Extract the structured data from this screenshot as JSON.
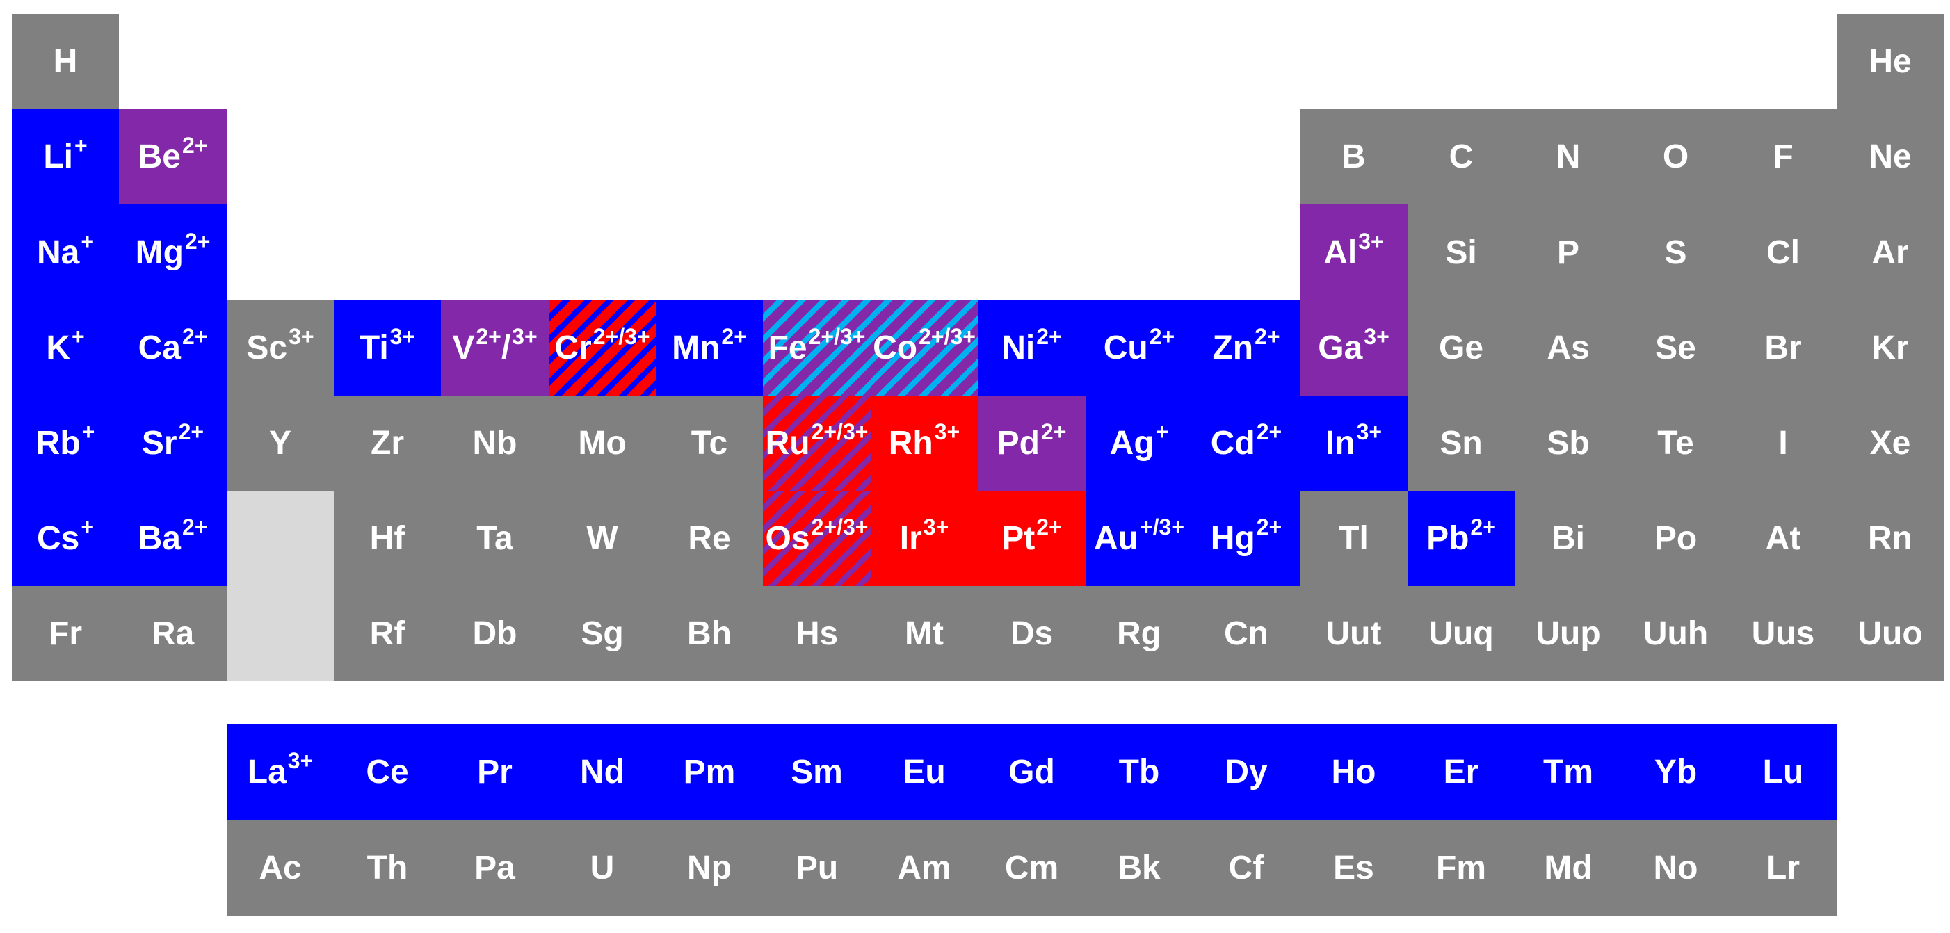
{
  "colors": {
    "gray": "#808080",
    "blue": "#0000ff",
    "purple": "#8228a9",
    "red": "#ff0000",
    "cyan": "#00b0f0",
    "light_gray": "#d9d9d9",
    "text": "#ffffff"
  },
  "main_table": [
    {
      "symbol": "H",
      "charge": "",
      "row": 1,
      "col": 1,
      "fill": "gray"
    },
    {
      "symbol": "He",
      "charge": "",
      "row": 1,
      "col": 18,
      "fill": "gray"
    },
    {
      "symbol": "Li",
      "charge": "+",
      "row": 2,
      "col": 1,
      "fill": "blue"
    },
    {
      "symbol": "Be",
      "charge": "2+",
      "row": 2,
      "col": 2,
      "fill": "purple"
    },
    {
      "symbol": "B",
      "charge": "",
      "row": 2,
      "col": 13,
      "fill": "gray"
    },
    {
      "symbol": "C",
      "charge": "",
      "row": 2,
      "col": 14,
      "fill": "gray"
    },
    {
      "symbol": "N",
      "charge": "",
      "row": 2,
      "col": 15,
      "fill": "gray"
    },
    {
      "symbol": "O",
      "charge": "",
      "row": 2,
      "col": 16,
      "fill": "gray"
    },
    {
      "symbol": "F",
      "charge": "",
      "row": 2,
      "col": 17,
      "fill": "gray"
    },
    {
      "symbol": "Ne",
      "charge": "",
      "row": 2,
      "col": 18,
      "fill": "gray"
    },
    {
      "symbol": "Na",
      "charge": "+",
      "row": 3,
      "col": 1,
      "fill": "blue"
    },
    {
      "symbol": "Mg",
      "charge": "2+",
      "row": 3,
      "col": 2,
      "fill": "blue"
    },
    {
      "symbol": "Al",
      "charge": "3+",
      "row": 3,
      "col": 13,
      "fill": "purple"
    },
    {
      "symbol": "Si",
      "charge": "",
      "row": 3,
      "col": 14,
      "fill": "gray"
    },
    {
      "symbol": "P",
      "charge": "",
      "row": 3,
      "col": 15,
      "fill": "gray"
    },
    {
      "symbol": "S",
      "charge": "",
      "row": 3,
      "col": 16,
      "fill": "gray"
    },
    {
      "symbol": "Cl",
      "charge": "",
      "row": 3,
      "col": 17,
      "fill": "gray"
    },
    {
      "symbol": "Ar",
      "charge": "",
      "row": 3,
      "col": 18,
      "fill": "gray"
    },
    {
      "symbol": "K",
      "charge": "+",
      "row": 4,
      "col": 1,
      "fill": "blue"
    },
    {
      "symbol": "Ca",
      "charge": "2+",
      "row": 4,
      "col": 2,
      "fill": "blue"
    },
    {
      "symbol": "Sc",
      "charge": "3+",
      "row": 4,
      "col": 3,
      "fill": "gray"
    },
    {
      "symbol": "Ti",
      "charge": "3+",
      "row": 4,
      "col": 4,
      "fill": "blue"
    },
    {
      "symbol": "V",
      "charge": "2+",
      "charge2": "3+",
      "row": 4,
      "col": 5,
      "fill": "purple"
    },
    {
      "symbol": "Cr",
      "charge": "2+/3+",
      "row": 4,
      "col": 6,
      "fill": "stripe-red-blue"
    },
    {
      "symbol": "Mn",
      "charge": "2+",
      "row": 4,
      "col": 7,
      "fill": "blue"
    },
    {
      "symbol": "Fe",
      "charge": "2+/3+",
      "row": 4,
      "col": 8,
      "fill": "stripe-purple-cyan"
    },
    {
      "symbol": "Co",
      "charge": "2+/3+",
      "row": 4,
      "col": 9,
      "fill": "stripe-purple-cyan"
    },
    {
      "symbol": "Ni",
      "charge": "2+",
      "row": 4,
      "col": 10,
      "fill": "blue"
    },
    {
      "symbol": "Cu",
      "charge": "2+",
      "row": 4,
      "col": 11,
      "fill": "blue"
    },
    {
      "symbol": "Zn",
      "charge": "2+",
      "row": 4,
      "col": 12,
      "fill": "blue"
    },
    {
      "symbol": "Ga",
      "charge": "3+",
      "row": 4,
      "col": 13,
      "fill": "purple"
    },
    {
      "symbol": "Ge",
      "charge": "",
      "row": 4,
      "col": 14,
      "fill": "gray"
    },
    {
      "symbol": "As",
      "charge": "",
      "row": 4,
      "col": 15,
      "fill": "gray"
    },
    {
      "symbol": "Se",
      "charge": "",
      "row": 4,
      "col": 16,
      "fill": "gray"
    },
    {
      "symbol": "Br",
      "charge": "",
      "row": 4,
      "col": 17,
      "fill": "gray"
    },
    {
      "symbol": "Kr",
      "charge": "",
      "row": 4,
      "col": 18,
      "fill": "gray"
    },
    {
      "symbol": "Rb",
      "charge": "+",
      "row": 5,
      "col": 1,
      "fill": "blue"
    },
    {
      "symbol": "Sr",
      "charge": "2+",
      "row": 5,
      "col": 2,
      "fill": "blue"
    },
    {
      "symbol": "Y",
      "charge": "",
      "row": 5,
      "col": 3,
      "fill": "gray"
    },
    {
      "symbol": "Zr",
      "charge": "",
      "row": 5,
      "col": 4,
      "fill": "gray"
    },
    {
      "symbol": "Nb",
      "charge": "",
      "row": 5,
      "col": 5,
      "fill": "gray"
    },
    {
      "symbol": "Mo",
      "charge": "",
      "row": 5,
      "col": 6,
      "fill": "gray"
    },
    {
      "symbol": "Tc",
      "charge": "",
      "row": 5,
      "col": 7,
      "fill": "gray"
    },
    {
      "symbol": "Ru",
      "charge": "2+/3+",
      "row": 5,
      "col": 8,
      "fill": "stripe-red-purple"
    },
    {
      "symbol": "Rh",
      "charge": "3+",
      "row": 5,
      "col": 9,
      "fill": "red"
    },
    {
      "symbol": "Pd",
      "charge": "2+",
      "row": 5,
      "col": 10,
      "fill": "purple"
    },
    {
      "symbol": "Ag",
      "charge": "+",
      "row": 5,
      "col": 11,
      "fill": "blue"
    },
    {
      "symbol": "Cd",
      "charge": "2+",
      "row": 5,
      "col": 12,
      "fill": "blue"
    },
    {
      "symbol": "In",
      "charge": "3+",
      "row": 5,
      "col": 13,
      "fill": "blue"
    },
    {
      "symbol": "Sn",
      "charge": "",
      "row": 5,
      "col": 14,
      "fill": "gray"
    },
    {
      "symbol": "Sb",
      "charge": "",
      "row": 5,
      "col": 15,
      "fill": "gray"
    },
    {
      "symbol": "Te",
      "charge": "",
      "row": 5,
      "col": 16,
      "fill": "gray"
    },
    {
      "symbol": "I",
      "charge": "",
      "row": 5,
      "col": 17,
      "fill": "gray"
    },
    {
      "symbol": "Xe",
      "charge": "",
      "row": 5,
      "col": 18,
      "fill": "gray"
    },
    {
      "symbol": "Cs",
      "charge": "+",
      "row": 6,
      "col": 1,
      "fill": "blue"
    },
    {
      "symbol": "Ba",
      "charge": "2+",
      "row": 6,
      "col": 2,
      "fill": "blue"
    },
    {
      "symbol": "",
      "charge": "",
      "row": 6,
      "col": 3,
      "fill": "light"
    },
    {
      "symbol": "Hf",
      "charge": "",
      "row": 6,
      "col": 4,
      "fill": "gray"
    },
    {
      "symbol": "Ta",
      "charge": "",
      "row": 6,
      "col": 5,
      "fill": "gray"
    },
    {
      "symbol": "W",
      "charge": "",
      "row": 6,
      "col": 6,
      "fill": "gray"
    },
    {
      "symbol": "Re",
      "charge": "",
      "row": 6,
      "col": 7,
      "fill": "gray"
    },
    {
      "symbol": "Os",
      "charge": "2+/3+",
      "row": 6,
      "col": 8,
      "fill": "stripe-red-purple"
    },
    {
      "symbol": "Ir",
      "charge": "3+",
      "row": 6,
      "col": 9,
      "fill": "red"
    },
    {
      "symbol": "Pt",
      "charge": "2+",
      "row": 6,
      "col": 10,
      "fill": "red"
    },
    {
      "symbol": "Au",
      "charge": "+/3+",
      "row": 6,
      "col": 11,
      "fill": "blue"
    },
    {
      "symbol": "Hg",
      "charge": "2+",
      "row": 6,
      "col": 12,
      "fill": "blue"
    },
    {
      "symbol": "Tl",
      "charge": "",
      "row": 6,
      "col": 13,
      "fill": "gray"
    },
    {
      "symbol": "Pb",
      "charge": "2+",
      "row": 6,
      "col": 14,
      "fill": "blue"
    },
    {
      "symbol": "Bi",
      "charge": "",
      "row": 6,
      "col": 15,
      "fill": "gray"
    },
    {
      "symbol": "Po",
      "charge": "",
      "row": 6,
      "col": 16,
      "fill": "gray"
    },
    {
      "symbol": "At",
      "charge": "",
      "row": 6,
      "col": 17,
      "fill": "gray"
    },
    {
      "symbol": "Rn",
      "charge": "",
      "row": 6,
      "col": 18,
      "fill": "gray"
    },
    {
      "symbol": "Fr",
      "charge": "",
      "row": 7,
      "col": 1,
      "fill": "gray"
    },
    {
      "symbol": "Ra",
      "charge": "",
      "row": 7,
      "col": 2,
      "fill": "gray"
    },
    {
      "symbol": "",
      "charge": "",
      "row": 7,
      "col": 3,
      "fill": "light"
    },
    {
      "symbol": "Rf",
      "charge": "",
      "row": 7,
      "col": 4,
      "fill": "gray"
    },
    {
      "symbol": "Db",
      "charge": "",
      "row": 7,
      "col": 5,
      "fill": "gray"
    },
    {
      "symbol": "Sg",
      "charge": "",
      "row": 7,
      "col": 6,
      "fill": "gray"
    },
    {
      "symbol": "Bh",
      "charge": "",
      "row": 7,
      "col": 7,
      "fill": "gray"
    },
    {
      "symbol": "Hs",
      "charge": "",
      "row": 7,
      "col": 8,
      "fill": "gray"
    },
    {
      "symbol": "Mt",
      "charge": "",
      "row": 7,
      "col": 9,
      "fill": "gray"
    },
    {
      "symbol": "Ds",
      "charge": "",
      "row": 7,
      "col": 10,
      "fill": "gray"
    },
    {
      "symbol": "Rg",
      "charge": "",
      "row": 7,
      "col": 11,
      "fill": "gray"
    },
    {
      "symbol": "Cn",
      "charge": "",
      "row": 7,
      "col": 12,
      "fill": "gray"
    },
    {
      "symbol": "Uut",
      "charge": "",
      "row": 7,
      "col": 13,
      "fill": "gray"
    },
    {
      "symbol": "Uuq",
      "charge": "",
      "row": 7,
      "col": 14,
      "fill": "gray"
    },
    {
      "symbol": "Uup",
      "charge": "",
      "row": 7,
      "col": 15,
      "fill": "gray"
    },
    {
      "symbol": "Uuh",
      "charge": "",
      "row": 7,
      "col": 16,
      "fill": "gray"
    },
    {
      "symbol": "Uus",
      "charge": "",
      "row": 7,
      "col": 17,
      "fill": "gray"
    },
    {
      "symbol": "Uuo",
      "charge": "",
      "row": 7,
      "col": 18,
      "fill": "gray"
    }
  ],
  "lanthanides": [
    {
      "symbol": "La",
      "charge": "3+",
      "fill": "blue"
    },
    {
      "symbol": "Ce",
      "charge": "",
      "fill": "blue"
    },
    {
      "symbol": "Pr",
      "charge": "",
      "fill": "blue"
    },
    {
      "symbol": "Nd",
      "charge": "",
      "fill": "blue"
    },
    {
      "symbol": "Pm",
      "charge": "",
      "fill": "blue"
    },
    {
      "symbol": "Sm",
      "charge": "",
      "fill": "blue"
    },
    {
      "symbol": "Eu",
      "charge": "",
      "fill": "blue"
    },
    {
      "symbol": "Gd",
      "charge": "",
      "fill": "blue"
    },
    {
      "symbol": "Tb",
      "charge": "",
      "fill": "blue"
    },
    {
      "symbol": "Dy",
      "charge": "",
      "fill": "blue"
    },
    {
      "symbol": "Ho",
      "charge": "",
      "fill": "blue"
    },
    {
      "symbol": "Er",
      "charge": "",
      "fill": "blue"
    },
    {
      "symbol": "Tm",
      "charge": "",
      "fill": "blue"
    },
    {
      "symbol": "Yb",
      "charge": "",
      "fill": "blue"
    },
    {
      "symbol": "Lu",
      "charge": "",
      "fill": "blue"
    }
  ],
  "actinides": [
    {
      "symbol": "Ac",
      "charge": "",
      "fill": "gray"
    },
    {
      "symbol": "Th",
      "charge": "",
      "fill": "gray"
    },
    {
      "symbol": "Pa",
      "charge": "",
      "fill": "gray"
    },
    {
      "symbol": "U",
      "charge": "",
      "fill": "gray"
    },
    {
      "symbol": "Np",
      "charge": "",
      "fill": "gray"
    },
    {
      "symbol": "Pu",
      "charge": "",
      "fill": "gray"
    },
    {
      "symbol": "Am",
      "charge": "",
      "fill": "gray"
    },
    {
      "symbol": "Cm",
      "charge": "",
      "fill": "gray"
    },
    {
      "symbol": "Bk",
      "charge": "",
      "fill": "gray"
    },
    {
      "symbol": "Cf",
      "charge": "",
      "fill": "gray"
    },
    {
      "symbol": "Es",
      "charge": "",
      "fill": "gray"
    },
    {
      "symbol": "Fm",
      "charge": "",
      "fill": "gray"
    },
    {
      "symbol": "Md",
      "charge": "",
      "fill": "gray"
    },
    {
      "symbol": "No",
      "charge": "",
      "fill": "gray"
    },
    {
      "symbol": "Lr",
      "charge": "",
      "fill": "gray"
    }
  ]
}
